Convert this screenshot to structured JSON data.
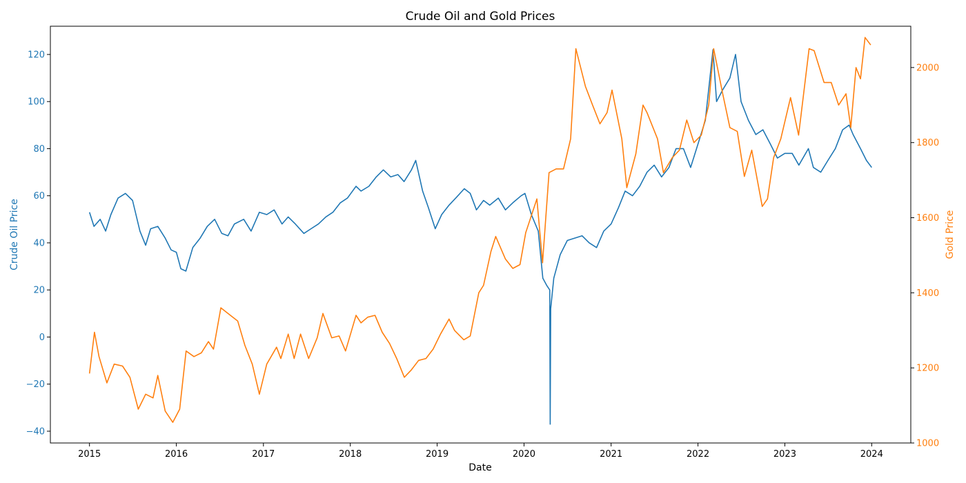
{
  "chart_data": {
    "type": "line",
    "title": "Crude Oil and Gold Prices",
    "xlabel": "Date",
    "ylabel_left": "Crude Oil Price",
    "ylabel_right": "Gold Price",
    "x_range": [
      "2015-01-01",
      "2024-01-01"
    ],
    "x_ticks": [
      "2015",
      "2016",
      "2017",
      "2018",
      "2019",
      "2020",
      "2021",
      "2022",
      "2023",
      "2024"
    ],
    "ylim_left": [
      -45,
      132
    ],
    "ylim_right": [
      1000,
      2110
    ],
    "y_ticks_left": [
      -40,
      -20,
      0,
      20,
      40,
      60,
      80,
      100,
      120
    ],
    "y_ticks_right": [
      1000,
      1200,
      1400,
      1600,
      1800,
      2000
    ],
    "grid": false,
    "colors": {
      "left": "#1f77b4",
      "right": "#ff7f0e"
    },
    "series": [
      {
        "axis": "left",
        "x": [
          "2015-01-01",
          "2015-01-20",
          "2015-02-15",
          "2015-03-10",
          "2015-04-01",
          "2015-05-01",
          "2015-06-01",
          "2015-07-01",
          "2015-08-01",
          "2015-08-25",
          "2015-09-15",
          "2015-10-15",
          "2015-11-15",
          "2015-12-10",
          "2016-01-01",
          "2016-01-20",
          "2016-02-10",
          "2016-03-10",
          "2016-04-10",
          "2016-05-10",
          "2016-06-10",
          "2016-07-10",
          "2016-08-05",
          "2016-09-01",
          "2016-10-10",
          "2016-11-10",
          "2016-12-15",
          "2017-01-15",
          "2017-02-15",
          "2017-03-20",
          "2017-04-15",
          "2017-05-15",
          "2017-06-20",
          "2017-07-20",
          "2017-08-20",
          "2017-09-20",
          "2017-10-20",
          "2017-11-20",
          "2017-12-20",
          "2018-01-25",
          "2018-02-15",
          "2018-03-20",
          "2018-04-20",
          "2018-05-20",
          "2018-06-20",
          "2018-07-20",
          "2018-08-15",
          "2018-09-15",
          "2018-10-03",
          "2018-11-01",
          "2018-11-25",
          "2018-12-24",
          "2019-01-20",
          "2019-02-20",
          "2019-03-20",
          "2019-04-25",
          "2019-05-20",
          "2019-06-15",
          "2019-07-15",
          "2019-08-10",
          "2019-09-15",
          "2019-10-15",
          "2019-11-15",
          "2019-12-20",
          "2020-01-05",
          "2020-02-01",
          "2020-03-01",
          "2020-03-20",
          "2020-04-05",
          "2020-04-18",
          "2020-04-20",
          "2020-04-22",
          "2020-05-05",
          "2020-06-01",
          "2020-07-01",
          "2020-08-01",
          "2020-09-01",
          "2020-10-01",
          "2020-11-01",
          "2020-12-01",
          "2021-01-01",
          "2021-02-01",
          "2021-03-01",
          "2021-04-01",
          "2021-05-01",
          "2021-06-01",
          "2021-07-01",
          "2021-08-01",
          "2021-09-01",
          "2021-10-01",
          "2021-11-01",
          "2021-12-01",
          "2022-01-01",
          "2022-02-01",
          "2022-03-05",
          "2022-03-20",
          "2022-04-15",
          "2022-05-15",
          "2022-06-08",
          "2022-07-01",
          "2022-08-01",
          "2022-09-01",
          "2022-10-01",
          "2022-11-01",
          "2022-12-01",
          "2023-01-01",
          "2023-02-01",
          "2023-03-01",
          "2023-04-10",
          "2023-05-01",
          "2023-06-01",
          "2023-07-01",
          "2023-08-01",
          "2023-09-01",
          "2023-09-28",
          "2023-10-15",
          "2023-11-15",
          "2023-12-10",
          "2024-01-01"
        ],
        "values": [
          53,
          47,
          50,
          45,
          52,
          59,
          61,
          58,
          45,
          39,
          46,
          47,
          42,
          37,
          36,
          29,
          28,
          38,
          42,
          47,
          50,
          44,
          43,
          48,
          50,
          45,
          53,
          52,
          54,
          48,
          51,
          48,
          44,
          46,
          48,
          51,
          53,
          57,
          59,
          64,
          62,
          64,
          68,
          71,
          68,
          69,
          66,
          71,
          75,
          62,
          55,
          46,
          52,
          56,
          59,
          63,
          61,
          54,
          58,
          56,
          59,
          54,
          57,
          60,
          61,
          52,
          45,
          25,
          22,
          20,
          -37,
          12,
          25,
          35,
          41,
          42,
          43,
          40,
          38,
          45,
          48,
          55,
          62,
          60,
          64,
          70,
          73,
          68,
          72,
          80,
          80,
          72,
          82,
          92,
          122,
          100,
          105,
          110,
          120,
          100,
          92,
          86,
          88,
          82,
          76,
          78,
          78,
          73,
          80,
          72,
          70,
          75,
          80,
          88,
          90,
          86,
          80,
          75,
          72
        ]
      },
      {
        "axis": "right",
        "x": [
          "2015-01-01",
          "2015-01-22",
          "2015-02-10",
          "2015-03-15",
          "2015-04-15",
          "2015-05-20",
          "2015-06-20",
          "2015-07-25",
          "2015-08-25",
          "2015-09-25",
          "2015-10-15",
          "2015-11-15",
          "2015-12-17",
          "2016-01-15",
          "2016-02-11",
          "2016-03-15",
          "2016-04-15",
          "2016-05-15",
          "2016-06-05",
          "2016-07-06",
          "2016-08-15",
          "2016-09-15",
          "2016-10-15",
          "2016-11-15",
          "2016-12-15",
          "2017-01-15",
          "2017-02-25",
          "2017-03-15",
          "2017-04-15",
          "2017-05-10",
          "2017-06-06",
          "2017-07-10",
          "2017-08-15",
          "2017-09-08",
          "2017-10-15",
          "2017-11-15",
          "2017-12-12",
          "2018-01-25",
          "2018-02-15",
          "2018-03-15",
          "2018-04-15",
          "2018-05-15",
          "2018-06-15",
          "2018-07-15",
          "2018-08-16",
          "2018-09-15",
          "2018-10-15",
          "2018-11-15",
          "2018-12-15",
          "2019-01-15",
          "2019-02-20",
          "2019-03-15",
          "2019-04-23",
          "2019-05-20",
          "2019-06-25",
          "2019-07-15",
          "2019-08-15",
          "2019-09-04",
          "2019-10-15",
          "2019-11-15",
          "2019-12-15",
          "2020-01-08",
          "2020-02-24",
          "2020-03-19",
          "2020-04-15",
          "2020-05-15",
          "2020-06-15",
          "2020-07-15",
          "2020-08-06",
          "2020-09-15",
          "2020-10-15",
          "2020-11-15",
          "2020-12-15",
          "2021-01-05",
          "2021-02-15",
          "2021-03-08",
          "2021-04-15",
          "2021-05-15",
          "2021-06-01",
          "2021-07-15",
          "2021-08-09",
          "2021-09-15",
          "2021-10-15",
          "2021-11-15",
          "2021-12-15",
          "2022-01-15",
          "2022-02-15",
          "2022-03-08",
          "2022-04-15",
          "2022-05-15",
          "2022-06-15",
          "2022-07-15",
          "2022-08-15",
          "2022-09-28",
          "2022-10-20",
          "2022-11-15",
          "2022-12-15",
          "2023-01-25",
          "2023-02-28",
          "2023-04-13",
          "2023-05-04",
          "2023-06-15",
          "2023-07-15",
          "2023-08-15",
          "2023-09-15",
          "2023-10-05",
          "2023-10-27",
          "2023-11-15",
          "2023-12-04",
          "2023-12-28"
        ],
        "values": [
          1185,
          1295,
          1230,
          1160,
          1210,
          1205,
          1175,
          1090,
          1130,
          1120,
          1180,
          1085,
          1055,
          1090,
          1245,
          1230,
          1240,
          1270,
          1250,
          1360,
          1340,
          1325,
          1260,
          1210,
          1130,
          1210,
          1255,
          1225,
          1290,
          1225,
          1290,
          1225,
          1280,
          1345,
          1280,
          1285,
          1245,
          1340,
          1320,
          1335,
          1340,
          1295,
          1265,
          1225,
          1175,
          1195,
          1220,
          1225,
          1250,
          1290,
          1330,
          1300,
          1275,
          1285,
          1400,
          1420,
          1510,
          1550,
          1490,
          1465,
          1475,
          1560,
          1650,
          1480,
          1720,
          1730,
          1730,
          1810,
          2050,
          1950,
          1900,
          1850,
          1880,
          1940,
          1810,
          1680,
          1770,
          1900,
          1880,
          1810,
          1720,
          1760,
          1780,
          1860,
          1800,
          1820,
          1900,
          2050,
          1930,
          1840,
          1830,
          1710,
          1780,
          1630,
          1650,
          1760,
          1810,
          1920,
          1820,
          2050,
          2045,
          1960,
          1960,
          1900,
          1930,
          1840,
          2000,
          1970,
          2080,
          2060
        ]
      }
    ]
  }
}
